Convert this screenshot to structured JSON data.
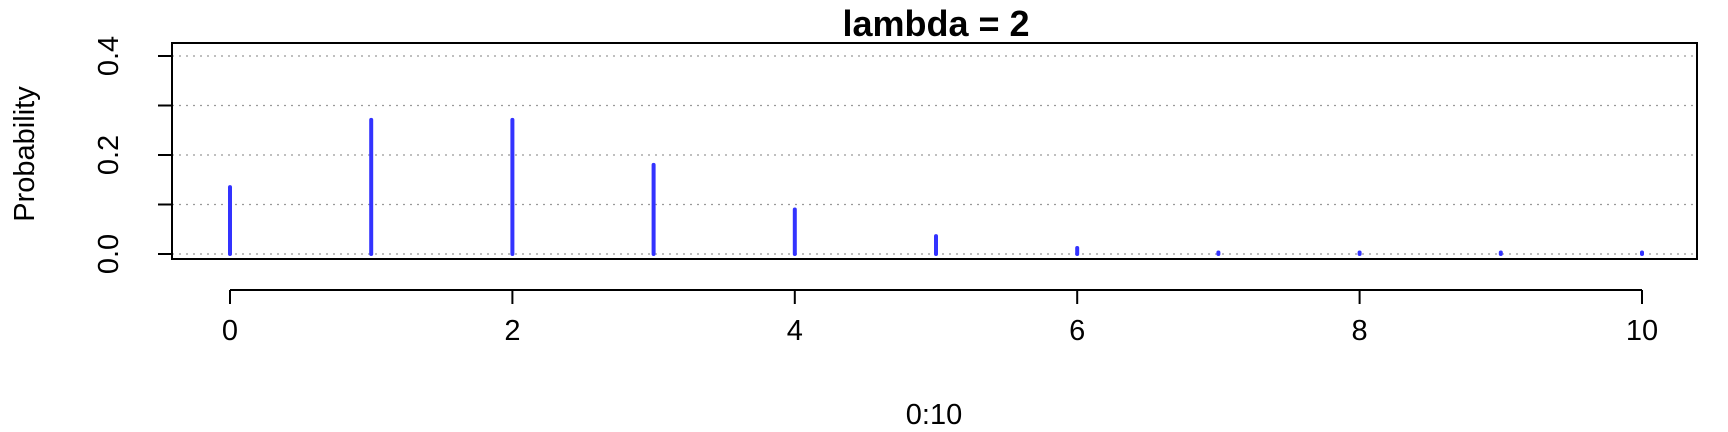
{
  "chart_data": {
    "type": "bar",
    "title": "lambda = 2",
    "xlabel": "0:10",
    "ylabel": "Probability",
    "x": [
      0,
      1,
      2,
      3,
      4,
      5,
      6,
      7,
      8,
      9,
      10
    ],
    "values": [
      0.135,
      0.271,
      0.271,
      0.18,
      0.09,
      0.036,
      0.012,
      0.003,
      0.001,
      0.0002,
      4e-05
    ],
    "xlim": [
      0,
      10
    ],
    "ylim": [
      0,
      0.4
    ],
    "x_ticks": [
      "0",
      "2",
      "4",
      "6",
      "8",
      "10"
    ],
    "y_ticks": [
      "0.0",
      "0.2",
      "0.4"
    ],
    "y_minor_ticks": [
      0,
      0.1,
      0.2,
      0.3,
      0.4
    ],
    "grid": "horizontal dotted",
    "colors": {
      "bars": "#3333ff",
      "grid": "#999999",
      "axis": "#000000"
    }
  }
}
